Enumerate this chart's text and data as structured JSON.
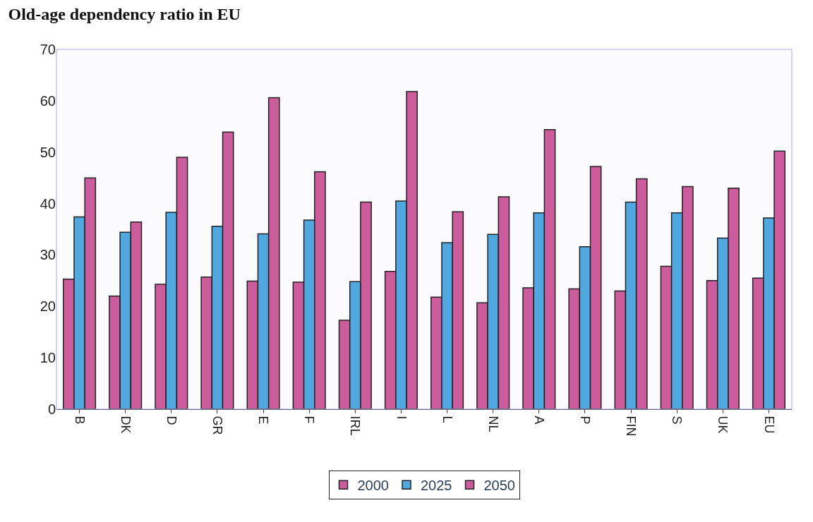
{
  "chart_data": {
    "type": "bar",
    "title": "Old-age dependency ratio in EU",
    "categories": [
      "B",
      "DK",
      "D",
      "GR",
      "E",
      "F",
      "IRL",
      "I",
      "L",
      "NL",
      "A",
      "P",
      "FIN",
      "S",
      "UK",
      "EU"
    ],
    "series": [
      {
        "name": "2000",
        "color": "#cc5c9c",
        "values": [
          25.3,
          22.0,
          24.3,
          25.7,
          24.9,
          24.7,
          17.3,
          26.8,
          21.8,
          20.7,
          23.6,
          23.4,
          23.0,
          27.8,
          25.0,
          25.5
        ]
      },
      {
        "name": "2025",
        "color": "#4fa8e0",
        "values": [
          37.4,
          34.4,
          38.3,
          35.6,
          34.1,
          36.8,
          24.8,
          40.5,
          32.4,
          34.0,
          38.2,
          31.6,
          40.3,
          38.2,
          33.3,
          37.2
        ]
      },
      {
        "name": "2050",
        "color": "#cc5c9c",
        "values": [
          45.0,
          36.4,
          49.0,
          53.9,
          60.6,
          46.2,
          40.3,
          61.8,
          38.4,
          41.3,
          54.4,
          47.2,
          44.8,
          43.3,
          43.0,
          50.2
        ]
      }
    ],
    "ylim": [
      0,
      70
    ],
    "yticks": [
      0,
      10,
      20,
      30,
      40,
      50,
      60,
      70
    ],
    "legend": "bottom"
  }
}
